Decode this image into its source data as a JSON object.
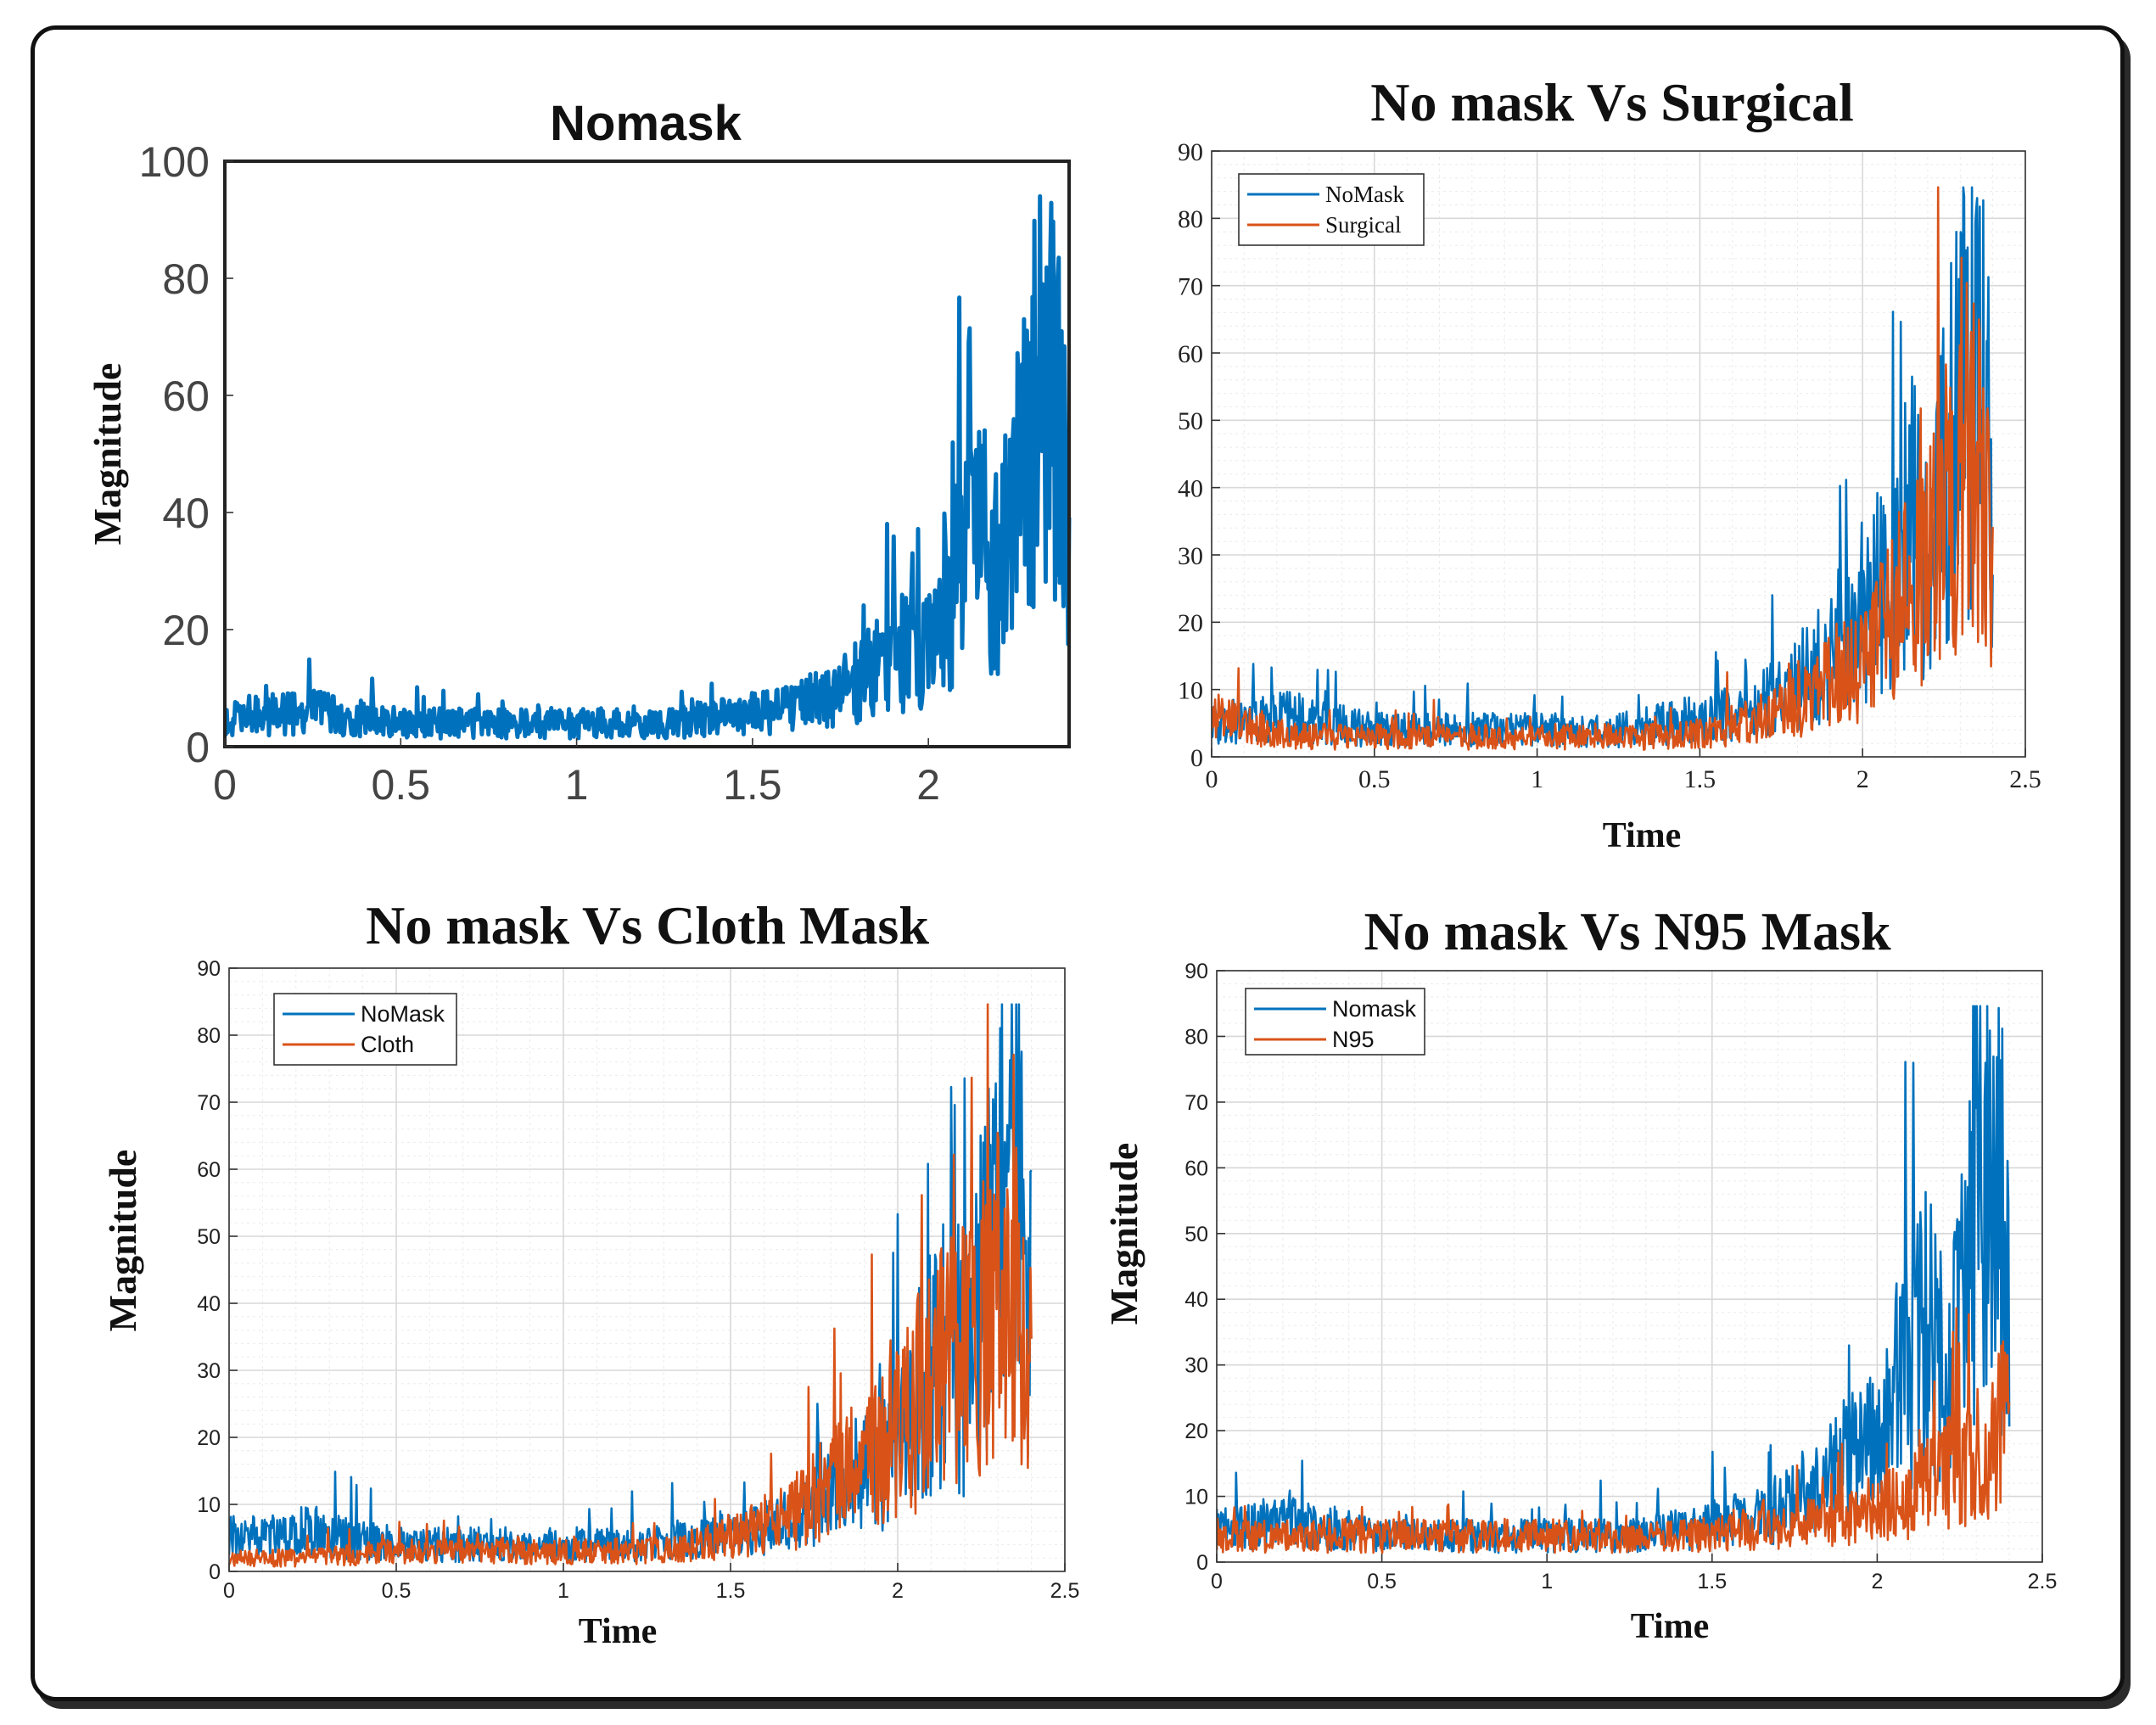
{
  "colors": {
    "nomask": "#0072BD",
    "comparison": "#D95319",
    "grid_major": "#d8d8d8",
    "grid_minor": "#ebebeb"
  },
  "chart_data": [
    {
      "id": "nomask",
      "type": "line",
      "title": "Nomask",
      "xlabel": "",
      "ylabel": "Magnitude",
      "xlim": [
        0,
        2.4
      ],
      "ylim": [
        0,
        100
      ],
      "xticks": [
        "0",
        "0.5",
        "1",
        "1.5",
        "2"
      ],
      "yticks": [
        "0",
        "20",
        "40",
        "60",
        "80",
        "100"
      ],
      "grid": false,
      "legend": [],
      "series": [
        {
          "name": "Nomask",
          "color": "#0072BD",
          "x": [
            0,
            0.25,
            0.5,
            0.75,
            1.0,
            1.25,
            1.4,
            1.55,
            1.7,
            1.8,
            1.9,
            2.0,
            2.05,
            2.1,
            2.15,
            2.2,
            2.25,
            2.3,
            2.35,
            2.4
          ],
          "y": [
            5,
            6,
            4,
            4,
            4,
            4,
            5,
            6,
            8,
            11,
            15,
            18,
            25,
            30,
            35,
            30,
            40,
            55,
            60,
            45
          ]
        }
      ]
    },
    {
      "id": "surgical",
      "type": "line",
      "title": "No mask Vs Surgical",
      "xlabel": "Time",
      "ylabel": "",
      "xlim": [
        0,
        2.5
      ],
      "ylim": [
        0,
        90
      ],
      "xticks": [
        "0",
        "0.5",
        "1",
        "1.5",
        "2",
        "2.5"
      ],
      "yticks": [
        "0",
        "10",
        "20",
        "30",
        "40",
        "50",
        "60",
        "70",
        "80",
        "90"
      ],
      "grid": true,
      "legend": [
        "NoMask",
        "Surgical"
      ],
      "series": [
        {
          "name": "NoMask",
          "color": "#0072BD",
          "x": [
            0,
            0.25,
            0.5,
            0.75,
            1.0,
            1.25,
            1.4,
            1.55,
            1.7,
            1.8,
            1.9,
            2.0,
            2.05,
            2.1,
            2.15,
            2.2,
            2.25,
            2.3,
            2.35,
            2.4
          ],
          "y": [
            5,
            6,
            4,
            4,
            4,
            4,
            5,
            6,
            8,
            11,
            15,
            18,
            25,
            30,
            35,
            30,
            40,
            55,
            60,
            45
          ]
        },
        {
          "name": "Surgical",
          "color": "#D95319",
          "x": [
            0,
            0.25,
            0.5,
            0.75,
            1.0,
            1.25,
            1.4,
            1.55,
            1.7,
            1.8,
            1.9,
            2.0,
            2.05,
            2.1,
            2.15,
            2.2,
            2.25,
            2.3,
            2.35,
            2.4
          ],
          "y": [
            6,
            3,
            3,
            3,
            3,
            3,
            3,
            4,
            6,
            8,
            11,
            14,
            18,
            22,
            26,
            28,
            35,
            40,
            42,
            35
          ]
        }
      ]
    },
    {
      "id": "cloth",
      "type": "line",
      "title": "No mask Vs Cloth Mask",
      "xlabel": "Time",
      "ylabel": "Magnitude",
      "xlim": [
        0,
        2.5
      ],
      "ylim": [
        0,
        90
      ],
      "xticks": [
        "0",
        "0.5",
        "1",
        "1.5",
        "2",
        "2.5"
      ],
      "yticks": [
        "0",
        "10",
        "20",
        "30",
        "40",
        "50",
        "60",
        "70",
        "80",
        "90"
      ],
      "grid": true,
      "legend": [
        "NoMask",
        "Cloth"
      ],
      "series": [
        {
          "name": "NoMask",
          "color": "#0072BD",
          "x": [
            0,
            0.25,
            0.5,
            0.75,
            1.0,
            1.25,
            1.4,
            1.55,
            1.7,
            1.8,
            1.9,
            2.0,
            2.05,
            2.1,
            2.15,
            2.2,
            2.25,
            2.3,
            2.35,
            2.4
          ],
          "y": [
            5,
            6,
            4,
            4,
            4,
            4,
            5,
            6,
            8,
            11,
            15,
            18,
            25,
            30,
            35,
            30,
            40,
            55,
            60,
            45
          ]
        },
        {
          "name": "Cloth",
          "color": "#D95319",
          "x": [
            0,
            0.25,
            0.5,
            0.75,
            1.0,
            1.25,
            1.4,
            1.55,
            1.7,
            1.8,
            1.9,
            2.0,
            2.05,
            2.1,
            2.15,
            2.2,
            2.25,
            2.3,
            2.35,
            2.4
          ],
          "y": [
            2,
            2,
            3,
            3,
            3,
            3,
            4,
            6,
            9,
            13,
            16,
            20,
            24,
            28,
            30,
            32,
            38,
            42,
            40,
            35
          ]
        }
      ]
    },
    {
      "id": "n95",
      "type": "line",
      "title": "No mask Vs N95 Mask",
      "xlabel": "Time",
      "ylabel": "Magnitude",
      "xlim": [
        0,
        2.5
      ],
      "ylim": [
        0,
        90
      ],
      "xticks": [
        "0",
        "0.5",
        "1",
        "1.5",
        "2",
        "2.5"
      ],
      "yticks": [
        "0",
        "10",
        "20",
        "30",
        "40",
        "50",
        "60",
        "70",
        "80",
        "90"
      ],
      "grid": true,
      "legend": [
        "Nomask",
        "N95"
      ],
      "series": [
        {
          "name": "Nomask",
          "color": "#0072BD",
          "x": [
            0,
            0.25,
            0.5,
            0.75,
            1.0,
            1.25,
            1.4,
            1.55,
            1.7,
            1.8,
            1.9,
            2.0,
            2.05,
            2.1,
            2.15,
            2.2,
            2.25,
            2.3,
            2.35,
            2.4
          ],
          "y": [
            5,
            6,
            4,
            4,
            4,
            4,
            5,
            6,
            8,
            11,
            15,
            18,
            25,
            30,
            35,
            30,
            40,
            55,
            60,
            45
          ]
        },
        {
          "name": "N95",
          "color": "#D95319",
          "x": [
            0,
            0.25,
            0.5,
            0.75,
            1.0,
            1.25,
            1.4,
            1.55,
            1.7,
            1.8,
            1.9,
            2.0,
            2.05,
            2.1,
            2.15,
            2.2,
            2.25,
            2.3,
            2.35,
            2.4
          ],
          "y": [
            4,
            4,
            4,
            4,
            4,
            4,
            4,
            5,
            5,
            6,
            7,
            8,
            9,
            10,
            12,
            13,
            15,
            16,
            18,
            22
          ]
        }
      ]
    }
  ]
}
